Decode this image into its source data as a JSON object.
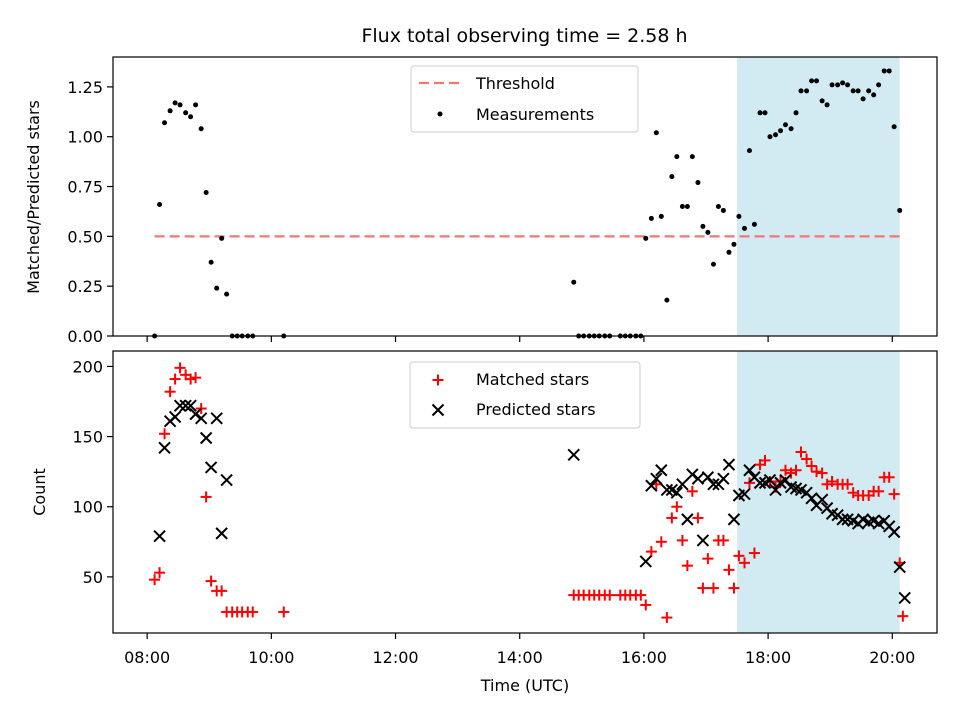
{
  "figure": {
    "title": "Flux total observing time = 2.58 h"
  },
  "colors": {
    "threshold": "#f07777",
    "measurements": "#000000",
    "matched": "#ff0000",
    "predicted": "#000000",
    "shade": "#add8e6",
    "legend_border": "#cccccc"
  },
  "chart_data": [
    {
      "type": "scatter",
      "name": "top",
      "ylabel": "Matched/Predicted stars",
      "xlim": [
        7.45,
        20.72
      ],
      "ylim": [
        0,
        1.4
      ],
      "yticks": [
        0,
        0.25,
        0.5,
        0.75,
        1.0,
        1.25
      ],
      "ytick_labels": [
        "0.00",
        "0.25",
        "0.50",
        "0.75",
        "1.00",
        "1.25"
      ],
      "xticks": [
        8,
        10,
        12,
        14,
        16,
        18,
        20
      ],
      "grid": false,
      "legend_position": "top-center",
      "shaded_span": [
        17.5,
        20.12
      ],
      "threshold": {
        "name": "Threshold",
        "y": 0.5,
        "x": [
          8.12,
          20.12
        ]
      },
      "series": [
        {
          "name": "Measurements",
          "marker": "dot",
          "points": [
            [
              8.12,
              0.0
            ],
            [
              8.2,
              0.66
            ],
            [
              8.28,
              1.07
            ],
            [
              8.37,
              1.13
            ],
            [
              8.45,
              1.17
            ],
            [
              8.53,
              1.16
            ],
            [
              8.62,
              1.12
            ],
            [
              8.7,
              1.1
            ],
            [
              8.78,
              1.16
            ],
            [
              8.87,
              1.04
            ],
            [
              8.95,
              0.72
            ],
            [
              9.03,
              0.37
            ],
            [
              9.12,
              0.24
            ],
            [
              9.2,
              0.49
            ],
            [
              9.28,
              0.21
            ],
            [
              9.37,
              0.0
            ],
            [
              9.45,
              0.0
            ],
            [
              9.53,
              0.0
            ],
            [
              9.62,
              0.0
            ],
            [
              9.7,
              0.0
            ],
            [
              10.2,
              0.0
            ],
            [
              14.87,
              0.27
            ],
            [
              14.95,
              0.0
            ],
            [
              15.03,
              0.0
            ],
            [
              15.12,
              0.0
            ],
            [
              15.2,
              0.0
            ],
            [
              15.28,
              0.0
            ],
            [
              15.37,
              0.0
            ],
            [
              15.45,
              0.0
            ],
            [
              15.62,
              0.0
            ],
            [
              15.7,
              0.0
            ],
            [
              15.78,
              0.0
            ],
            [
              15.87,
              0.0
            ],
            [
              15.95,
              0.0
            ],
            [
              16.03,
              0.49
            ],
            [
              16.12,
              0.59
            ],
            [
              16.2,
              1.02
            ],
            [
              16.28,
              0.6
            ],
            [
              16.37,
              0.18
            ],
            [
              16.45,
              0.8
            ],
            [
              16.53,
              0.9
            ],
            [
              16.62,
              0.65
            ],
            [
              16.7,
              0.65
            ],
            [
              16.78,
              0.9
            ],
            [
              16.87,
              0.77
            ],
            [
              16.95,
              0.55
            ],
            [
              17.03,
              0.52
            ],
            [
              17.12,
              0.36
            ],
            [
              17.2,
              0.65
            ],
            [
              17.28,
              0.63
            ],
            [
              17.37,
              0.42
            ],
            [
              17.45,
              0.46
            ],
            [
              17.53,
              0.6
            ],
            [
              17.62,
              0.54
            ],
            [
              17.7,
              0.93
            ],
            [
              17.78,
              0.56
            ],
            [
              17.87,
              1.12
            ],
            [
              17.95,
              1.12
            ],
            [
              18.03,
              1.0
            ],
            [
              18.12,
              1.01
            ],
            [
              18.2,
              1.03
            ],
            [
              18.28,
              1.06
            ],
            [
              18.37,
              1.04
            ],
            [
              18.45,
              1.12
            ],
            [
              18.53,
              1.23
            ],
            [
              18.62,
              1.23
            ],
            [
              18.7,
              1.28
            ],
            [
              18.78,
              1.28
            ],
            [
              18.87,
              1.18
            ],
            [
              18.95,
              1.16
            ],
            [
              19.03,
              1.26
            ],
            [
              19.12,
              1.26
            ],
            [
              19.2,
              1.27
            ],
            [
              19.28,
              1.26
            ],
            [
              19.37,
              1.23
            ],
            [
              19.45,
              1.23
            ],
            [
              19.53,
              1.19
            ],
            [
              19.62,
              1.23
            ],
            [
              19.7,
              1.21
            ],
            [
              19.78,
              1.26
            ],
            [
              19.87,
              1.33
            ],
            [
              19.95,
              1.33
            ],
            [
              20.03,
              1.05
            ],
            [
              20.12,
              0.63
            ]
          ]
        }
      ]
    },
    {
      "type": "scatter",
      "name": "bottom",
      "xlabel": "Time (UTC)",
      "ylabel": "Count",
      "xlim": [
        7.45,
        20.72
      ],
      "ylim": [
        10,
        211
      ],
      "yticks": [
        50,
        100,
        150,
        200
      ],
      "ytick_labels": [
        "50",
        "100",
        "150",
        "200"
      ],
      "xticks": [
        8,
        10,
        12,
        14,
        16,
        18,
        20
      ],
      "xtick_labels": [
        "08:00",
        "10:00",
        "12:00",
        "14:00",
        "16:00",
        "18:00",
        "20:00"
      ],
      "grid": false,
      "legend_position": "top-center",
      "shaded_span": [
        17.5,
        20.12
      ],
      "series": [
        {
          "name": "Matched stars",
          "marker": "plus",
          "points": [
            [
              8.12,
              48
            ],
            [
              8.2,
              53
            ],
            [
              8.28,
              152
            ],
            [
              8.37,
              182
            ],
            [
              8.45,
              191
            ],
            [
              8.53,
              199
            ],
            [
              8.62,
              194
            ],
            [
              8.7,
              191
            ],
            [
              8.78,
              192
            ],
            [
              8.87,
              170
            ],
            [
              8.95,
              107
            ],
            [
              9.03,
              47
            ],
            [
              9.12,
              40
            ],
            [
              9.2,
              40
            ],
            [
              9.28,
              25
            ],
            [
              9.37,
              25
            ],
            [
              9.45,
              25
            ],
            [
              9.53,
              25
            ],
            [
              9.62,
              25
            ],
            [
              9.7,
              25
            ],
            [
              10.2,
              25
            ],
            [
              14.87,
              37
            ],
            [
              14.95,
              37
            ],
            [
              15.03,
              37
            ],
            [
              15.12,
              37
            ],
            [
              15.2,
              37
            ],
            [
              15.28,
              37
            ],
            [
              15.37,
              37
            ],
            [
              15.45,
              37
            ],
            [
              15.62,
              37
            ],
            [
              15.7,
              37
            ],
            [
              15.78,
              37
            ],
            [
              15.87,
              37
            ],
            [
              15.95,
              37
            ],
            [
              16.03,
              30
            ],
            [
              16.12,
              68
            ],
            [
              16.2,
              116
            ],
            [
              16.28,
              75
            ],
            [
              16.37,
              21
            ],
            [
              16.45,
              92
            ],
            [
              16.53,
              100
            ],
            [
              16.62,
              76
            ],
            [
              16.7,
              58
            ],
            [
              16.78,
              111
            ],
            [
              16.87,
              92
            ],
            [
              16.95,
              42
            ],
            [
              17.03,
              63
            ],
            [
              17.12,
              42
            ],
            [
              17.2,
              76
            ],
            [
              17.28,
              76
            ],
            [
              17.37,
              55
            ],
            [
              17.45,
              42
            ],
            [
              17.53,
              65
            ],
            [
              17.62,
              60
            ],
            [
              17.7,
              117
            ],
            [
              17.78,
              67
            ],
            [
              17.87,
              130
            ],
            [
              17.95,
              133
            ],
            [
              18.03,
              118
            ],
            [
              18.12,
              114
            ],
            [
              18.2,
              118
            ],
            [
              18.28,
              126
            ],
            [
              18.37,
              124
            ],
            [
              18.45,
              126
            ],
            [
              18.53,
              139
            ],
            [
              18.62,
              134
            ],
            [
              18.7,
              129
            ],
            [
              18.78,
              125
            ],
            [
              18.87,
              124
            ],
            [
              18.95,
              116
            ],
            [
              19.03,
              118
            ],
            [
              19.12,
              116
            ],
            [
              19.2,
              116
            ],
            [
              19.28,
              116
            ],
            [
              19.37,
              110
            ],
            [
              19.45,
              108
            ],
            [
              19.53,
              108
            ],
            [
              19.62,
              108
            ],
            [
              19.7,
              111
            ],
            [
              19.78,
              111
            ],
            [
              19.87,
              121
            ],
            [
              19.95,
              121
            ],
            [
              20.03,
              109
            ],
            [
              20.12,
              60
            ],
            [
              20.17,
              22
            ]
          ]
        },
        {
          "name": "Predicted stars",
          "marker": "x",
          "points": [
            [
              8.2,
              79
            ],
            [
              8.28,
              142
            ],
            [
              8.37,
              161
            ],
            [
              8.45,
              164
            ],
            [
              8.53,
              172
            ],
            [
              8.62,
              172
            ],
            [
              8.7,
              172
            ],
            [
              8.78,
              166
            ],
            [
              8.87,
              163
            ],
            [
              8.95,
              149
            ],
            [
              9.03,
              128
            ],
            [
              9.12,
              163
            ],
            [
              9.2,
              81
            ],
            [
              9.28,
              119
            ],
            [
              14.87,
              137
            ],
            [
              16.03,
              61
            ],
            [
              16.12,
              115
            ],
            [
              16.2,
              120
            ],
            [
              16.28,
              126
            ],
            [
              16.37,
              112
            ],
            [
              16.45,
              112
            ],
            [
              16.53,
              110
            ],
            [
              16.62,
              116
            ],
            [
              16.7,
              91
            ],
            [
              16.78,
              123
            ],
            [
              16.87,
              120
            ],
            [
              16.95,
              76
            ],
            [
              17.03,
              121
            ],
            [
              17.12,
              116
            ],
            [
              17.2,
              116
            ],
            [
              17.28,
              120
            ],
            [
              17.37,
              130
            ],
            [
              17.45,
              91
            ],
            [
              17.53,
              108
            ],
            [
              17.62,
              109
            ],
            [
              17.7,
              126
            ],
            [
              17.78,
              121
            ],
            [
              17.87,
              117
            ],
            [
              17.95,
              117
            ],
            [
              18.03,
              119
            ],
            [
              18.12,
              112
            ],
            [
              18.2,
              117
            ],
            [
              18.28,
              119
            ],
            [
              18.37,
              114
            ],
            [
              18.45,
              113
            ],
            [
              18.53,
              112
            ],
            [
              18.62,
              110
            ],
            [
              18.7,
              106
            ],
            [
              18.78,
              101
            ],
            [
              18.87,
              105
            ],
            [
              18.95,
              99
            ],
            [
              19.03,
              95
            ],
            [
              19.12,
              94
            ],
            [
              19.2,
              91
            ],
            [
              19.28,
              91
            ],
            [
              19.37,
              90
            ],
            [
              19.45,
              88
            ],
            [
              19.53,
              91
            ],
            [
              19.62,
              89
            ],
            [
              19.7,
              90
            ],
            [
              19.78,
              88
            ],
            [
              19.87,
              90
            ],
            [
              19.95,
              86
            ],
            [
              20.03,
              82
            ],
            [
              20.12,
              57
            ],
            [
              20.2,
              35
            ]
          ]
        }
      ]
    }
  ]
}
